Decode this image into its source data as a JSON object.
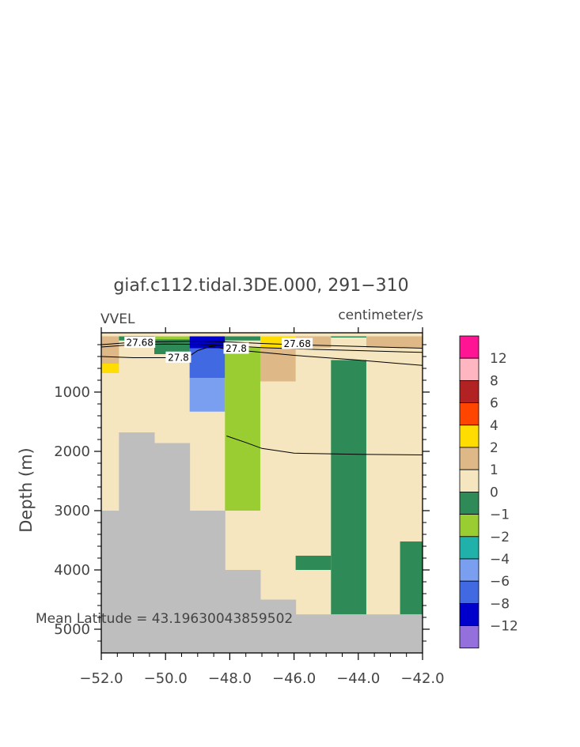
{
  "chart_data": {
    "type": "heatmap",
    "title": "giaf.c112.tidal.3DE.000, 291−310",
    "variable": "VVEL",
    "units": "centimeter/s",
    "ylabel": "Depth (m)",
    "annotation": "Mean Latitude = 43.19630043859502",
    "xlim": [
      -52,
      -42
    ],
    "ylim": [
      5400,
      0
    ],
    "x_ticks": [
      -52,
      -50,
      -48,
      -46,
      -44,
      -42
    ],
    "x_tick_labels": [
      "−52.0",
      "−50.0",
      "−48.0",
      "−46.0",
      "−44.0",
      "−42.0"
    ],
    "y_ticks": [
      1000,
      2000,
      3000,
      4000,
      5000
    ],
    "y_tick_labels": [
      "1000",
      "2000",
      "3000",
      "4000",
      "5000"
    ],
    "colorbar": {
      "labels": [
        "12",
        "8",
        "6",
        "4",
        "2",
        "1",
        "0",
        "−1",
        "−2",
        "−4",
        "−6",
        "−8",
        "−12"
      ],
      "colors": [
        "#ff1493",
        "#ffb6c1",
        "#b22222",
        "#ff4500",
        "#ffdd00",
        "#deb887",
        "#f5e6c0",
        "#2e8b57",
        "#9acd32",
        "#20b2aa",
        "#7b9ff0",
        "#4169e1",
        "#0000cd",
        "#9370db"
      ]
    },
    "background_color": "#f5e6c0",
    "land_color": "#bebebe",
    "cells": [
      {
        "x0": -52,
        "x1": -51.45,
        "d0": 60,
        "d1": 520,
        "color": "#deb887"
      },
      {
        "x0": -52,
        "x1": -51.45,
        "d0": 520,
        "d1": 680,
        "color": "#ffdd00"
      },
      {
        "x0": -51.45,
        "x1": -50.35,
        "d0": 60,
        "d1": 130,
        "color": "#2e8b57"
      },
      {
        "x0": -50.35,
        "x1": -49.25,
        "d0": 60,
        "d1": 110,
        "color": "#9acd32"
      },
      {
        "x0": -50.35,
        "x1": -49.25,
        "d0": 110,
        "d1": 360,
        "color": "#2e8b57"
      },
      {
        "x0": -49.25,
        "x1": -48.15,
        "d0": 60,
        "d1": 260,
        "color": "#0000cd"
      },
      {
        "x0": -49.25,
        "x1": -48.15,
        "d0": 260,
        "d1": 760,
        "color": "#4169e1"
      },
      {
        "x0": -49.25,
        "x1": -48.15,
        "d0": 760,
        "d1": 1330,
        "color": "#7b9ff0"
      },
      {
        "x0": -48.15,
        "x1": -47.05,
        "d0": 60,
        "d1": 130,
        "color": "#2e8b57"
      },
      {
        "x0": -48.15,
        "x1": -47.05,
        "d0": 250,
        "d1": 3000,
        "color": "#9acd32"
      },
      {
        "x0": -47.05,
        "x1": -45.95,
        "d0": 60,
        "d1": 250,
        "color": "#ffdd00"
      },
      {
        "x0": -47.05,
        "x1": -45.95,
        "d0": 250,
        "d1": 820,
        "color": "#deb887"
      },
      {
        "x0": -45.95,
        "x1": -44.85,
        "d0": 60,
        "d1": 250,
        "color": "#deb887"
      },
      {
        "x0": -44.85,
        "x1": -43.75,
        "d0": 60,
        "d1": 80,
        "color": "#2e8b57"
      },
      {
        "x0": -44.85,
        "x1": -43.75,
        "d0": 460,
        "d1": 4750,
        "color": "#2e8b57"
      },
      {
        "x0": -43.75,
        "x1": -42,
        "d0": 60,
        "d1": 250,
        "color": "#deb887"
      },
      {
        "x0": -45.95,
        "x1": -44.85,
        "d0": 3760,
        "d1": 4000,
        "color": "#2e8b57"
      },
      {
        "x0": -42.7,
        "x1": -42,
        "d0": 3520,
        "d1": 4750,
        "color": "#2e8b57"
      }
    ],
    "land": [
      {
        "x0": -52,
        "x1": -51.45,
        "d0": 3000,
        "d1": 5400
      },
      {
        "x0": -51.45,
        "x1": -50.35,
        "d0": 1680,
        "d1": 5400
      },
      {
        "x0": -50.35,
        "x1": -49.25,
        "d0": 1860,
        "d1": 5400
      },
      {
        "x0": -49.25,
        "x1": -48.15,
        "d0": 3000,
        "d1": 5400
      },
      {
        "x0": -48.15,
        "x1": -47.05,
        "d0": 4000,
        "d1": 5400
      },
      {
        "x0": -47.05,
        "x1": -45.95,
        "d0": 4500,
        "d1": 5400
      },
      {
        "x0": -45.95,
        "x1": -44.85,
        "d0": 4750,
        "d1": 5400
      },
      {
        "x0": -44.85,
        "x1": -42,
        "d0": 4750,
        "d1": 5400
      }
    ],
    "contours": [
      {
        "label": "27.68",
        "points": [
          [
            -52,
            200
          ],
          [
            -51,
            160
          ],
          [
            -50,
            150
          ],
          [
            -49,
            140
          ],
          [
            -48,
            155
          ],
          [
            -47,
            180
          ],
          [
            -46,
            200
          ],
          [
            -44,
            230
          ],
          [
            -42,
            260
          ]
        ]
      },
      {
        "label": "27.68",
        "points": [
          [
            -52,
            240
          ],
          [
            -51,
            200
          ],
          [
            -50,
            190
          ],
          [
            -49,
            195
          ],
          [
            -48,
            220
          ],
          [
            -47,
            250
          ],
          [
            -46,
            270
          ],
          [
            -44,
            300
          ],
          [
            -42,
            330
          ]
        ]
      },
      {
        "label": "27.8",
        "points": [
          [
            -52,
            400
          ],
          [
            -51,
            420
          ],
          [
            -50,
            420
          ],
          [
            -49.3,
            410
          ],
          [
            -49,
            300
          ],
          [
            -48.6,
            230
          ],
          [
            -48,
            280
          ],
          [
            -47,
            330
          ],
          [
            -46,
            380
          ],
          [
            -44,
            460
          ],
          [
            -42,
            550
          ]
        ]
      },
      {
        "label": "",
        "points": [
          [
            -48.1,
            1740
          ],
          [
            -47.5,
            1850
          ],
          [
            -47,
            1950
          ],
          [
            -46,
            2030
          ],
          [
            -44,
            2050
          ],
          [
            -42,
            2060
          ]
        ]
      }
    ],
    "contour_labels": [
      {
        "text": "27.68",
        "x": -50.8,
        "d": 160
      },
      {
        "text": "27.8",
        "x": -49.6,
        "d": 410
      },
      {
        "text": "27.8",
        "x": -47.8,
        "d": 260
      },
      {
        "text": "27.68",
        "x": -45.9,
        "d": 180
      }
    ]
  }
}
